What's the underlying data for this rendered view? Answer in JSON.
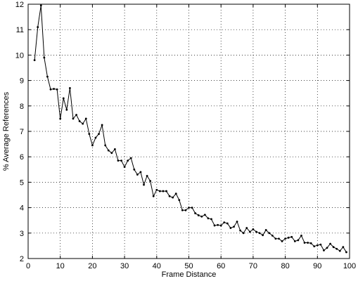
{
  "chart_data": {
    "type": "line",
    "title": "",
    "xlabel": "Frame Distance",
    "ylabel": "% Average References",
    "xlim": [
      0,
      100
    ],
    "ylim": [
      2,
      12
    ],
    "xticks": [
      0,
      10,
      20,
      30,
      40,
      50,
      60,
      70,
      80,
      90,
      100
    ],
    "yticks": [
      2,
      3,
      4,
      5,
      6,
      7,
      8,
      9,
      10,
      11,
      12
    ],
    "grid": true,
    "series": [
      {
        "color": "#000000",
        "marker": "dot",
        "x": [
          2,
          3,
          4,
          5,
          6,
          7,
          8,
          9,
          10,
          11,
          12,
          13,
          14,
          15,
          16,
          17,
          18,
          19,
          20,
          21,
          22,
          23,
          24,
          25,
          26,
          27,
          28,
          29,
          30,
          31,
          32,
          33,
          34,
          35,
          36,
          37,
          38,
          39,
          40,
          41,
          42,
          43,
          44,
          45,
          46,
          47,
          48,
          49,
          50,
          51,
          52,
          53,
          54,
          55,
          56,
          57,
          58,
          59,
          60,
          61,
          62,
          63,
          64,
          65,
          66,
          67,
          68,
          69,
          70,
          71,
          72,
          73,
          74,
          75,
          76,
          77,
          78,
          79,
          80,
          81,
          82,
          83,
          84,
          85,
          86,
          87,
          88,
          89,
          90,
          91,
          92,
          93,
          94,
          95,
          96,
          97,
          98,
          99
        ],
        "y": [
          9.8,
          11.1,
          11.95,
          9.9,
          9.15,
          8.65,
          8.67,
          8.65,
          7.5,
          8.3,
          7.85,
          8.7,
          7.5,
          7.65,
          7.4,
          7.3,
          7.5,
          6.9,
          6.45,
          6.75,
          6.9,
          7.25,
          6.45,
          6.25,
          6.15,
          6.3,
          5.85,
          5.85,
          5.6,
          5.85,
          5.95,
          5.5,
          5.3,
          5.4,
          4.9,
          5.25,
          5.05,
          4.45,
          4.7,
          4.65,
          4.65,
          4.65,
          4.45,
          4.4,
          4.55,
          4.3,
          3.9,
          3.9,
          4.0,
          4.0,
          3.78,
          3.7,
          3.65,
          3.72,
          3.58,
          3.55,
          3.3,
          3.32,
          3.3,
          3.42,
          3.38,
          3.2,
          3.25,
          3.45,
          3.1,
          3.0,
          3.2,
          3.05,
          3.15,
          3.05,
          3.0,
          2.92,
          3.12,
          3.0,
          2.9,
          2.78,
          2.78,
          2.68,
          2.78,
          2.82,
          2.85,
          2.68,
          2.72,
          2.9,
          2.62,
          2.62,
          2.6,
          2.48,
          2.52,
          2.55,
          2.32,
          2.42,
          2.58,
          2.45,
          2.38,
          2.3,
          2.45,
          2.25
        ]
      }
    ]
  }
}
